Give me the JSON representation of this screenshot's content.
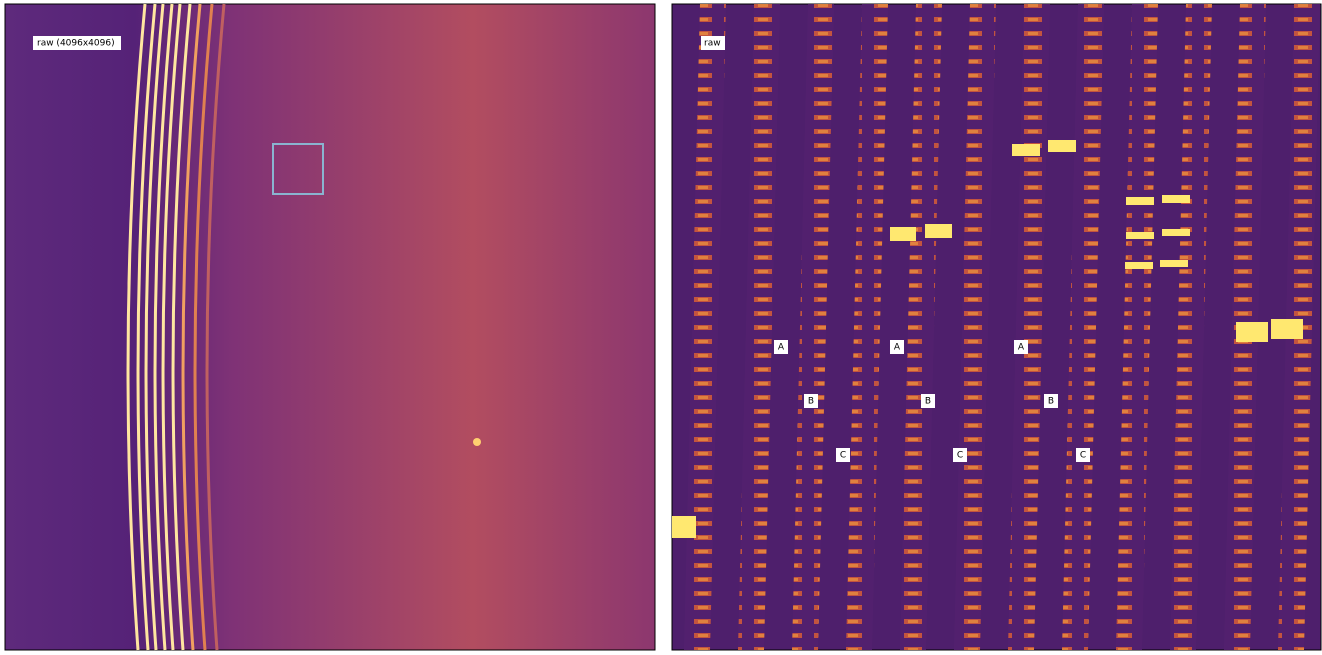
{
  "panels": [
    {
      "label": "raw (4096x4096)"
    },
    {
      "label": "raw",
      "markers": [
        "A",
        "B",
        "C",
        "A",
        "B",
        "C",
        "A",
        "B",
        "C"
      ]
    }
  ]
}
